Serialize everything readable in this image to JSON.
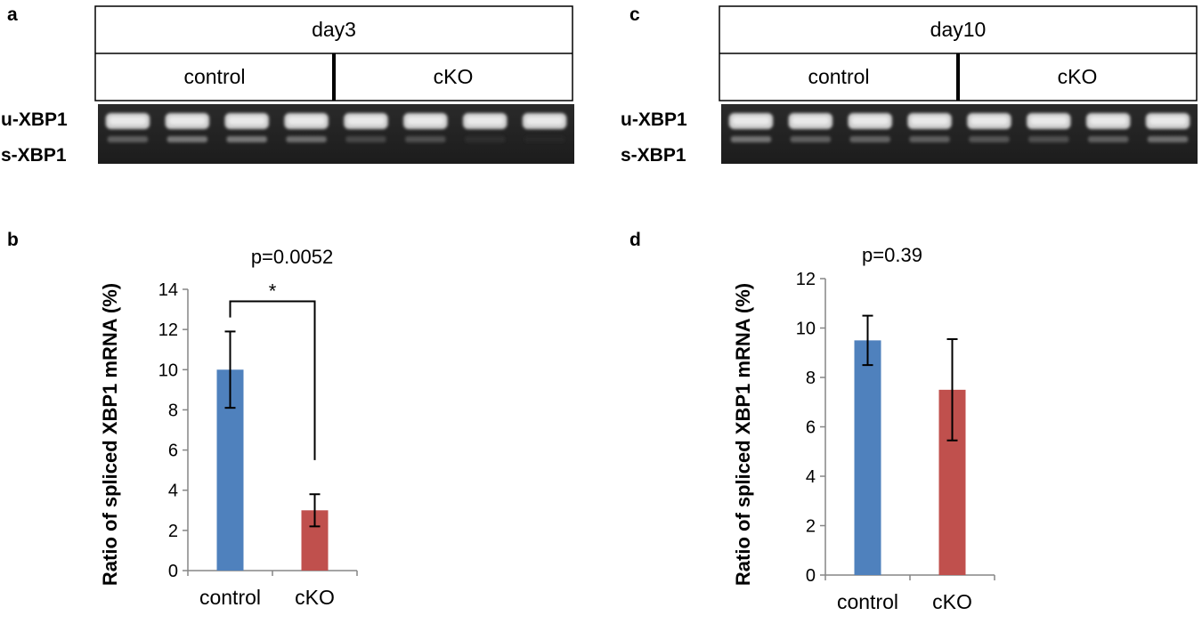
{
  "panels": {
    "a": {
      "letter": "a",
      "day": "day3",
      "groups": [
        "control",
        "cKO"
      ],
      "bands": [
        "u-XBP1",
        "s-XBP1"
      ]
    },
    "c": {
      "letter": "c",
      "day": "day10",
      "groups": [
        "control",
        "cKO"
      ],
      "bands": [
        "u-XBP1",
        "s-XBP1"
      ]
    },
    "b": {
      "letter": "b"
    },
    "d": {
      "letter": "d"
    }
  },
  "chart_data": [
    {
      "type": "bar",
      "panel": "b",
      "categories": [
        "control",
        "cKO"
      ],
      "values": [
        10.0,
        3.0
      ],
      "errors": [
        1.9,
        0.8
      ],
      "colors": [
        "#4f81bd",
        "#c0504d"
      ],
      "ylabel": "Ratio of spliced XBP1 mRNA (%)",
      "ylim": [
        0,
        14
      ],
      "yticks": [
        0,
        2,
        4,
        6,
        8,
        10,
        12,
        14
      ],
      "annotation": "p=0.0052",
      "significance": "*"
    },
    {
      "type": "bar",
      "panel": "d",
      "categories": [
        "control",
        "cKO"
      ],
      "values": [
        9.5,
        7.5
      ],
      "errors": [
        1.0,
        2.05
      ],
      "colors": [
        "#4f81bd",
        "#c0504d"
      ],
      "ylabel": "Ratio of spliced XBP1 mRNA (%)",
      "ylim": [
        0,
        12
      ],
      "yticks": [
        0,
        2,
        4,
        6,
        8,
        10,
        12
      ],
      "annotation": "p=0.39"
    }
  ]
}
